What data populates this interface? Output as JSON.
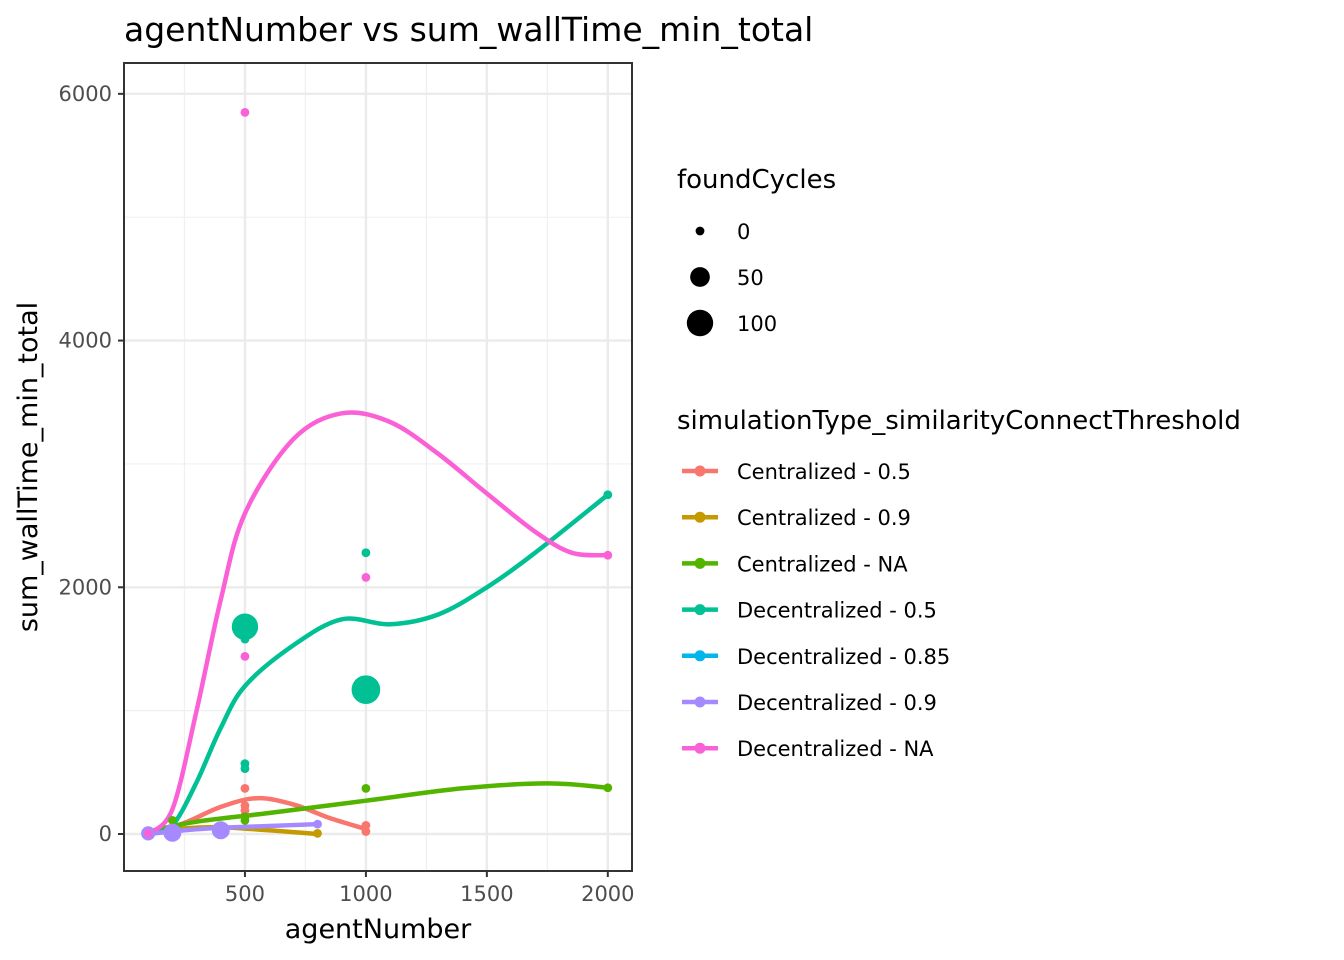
{
  "chart_data": {
    "type": "scatter",
    "title": "agentNumber  vs  sum_wallTime_min_total",
    "xlabel": "agentNumber",
    "ylabel": "sum_wallTime_min_total",
    "xlim": [
      0,
      2100
    ],
    "ylim": [
      -300,
      6250
    ],
    "x_ticks": [
      500,
      1000,
      1500,
      2000
    ],
    "y_ticks": [
      0,
      2000,
      4000,
      6000
    ],
    "grid": true,
    "legend_position": "right",
    "size_legend": {
      "title": "foundCycles",
      "entries": [
        {
          "label": "0",
          "value": 0
        },
        {
          "label": "50",
          "value": 50
        },
        {
          "label": "100",
          "value": 100
        }
      ]
    },
    "color_legend": {
      "title": "simulationType_similarityConnectThreshold"
    },
    "series": [
      {
        "name": "Centralized - 0.5",
        "color": "#F8766D",
        "points": [
          {
            "x": 100,
            "y": 0,
            "cycles": 0
          },
          {
            "x": 200,
            "y": 50,
            "cycles": 0
          },
          {
            "x": 500,
            "y": 370,
            "cycles": 0
          },
          {
            "x": 500,
            "y": 230,
            "cycles": 0
          },
          {
            "x": 500,
            "y": 190,
            "cycles": 0
          },
          {
            "x": 500,
            "y": 150,
            "cycles": 0
          },
          {
            "x": 1000,
            "y": 70,
            "cycles": 0
          },
          {
            "x": 1000,
            "y": 20,
            "cycles": 0
          }
        ],
        "trend": [
          {
            "x": 100,
            "y": 0
          },
          {
            "x": 250,
            "y": 90
          },
          {
            "x": 400,
            "y": 220
          },
          {
            "x": 550,
            "y": 290
          },
          {
            "x": 700,
            "y": 240
          },
          {
            "x": 850,
            "y": 130
          },
          {
            "x": 1000,
            "y": 40
          }
        ]
      },
      {
        "name": "Centralized - 0.9",
        "color": "#C49A00",
        "points": [
          {
            "x": 100,
            "y": 0,
            "cycles": 0
          },
          {
            "x": 200,
            "y": 20,
            "cycles": 0
          },
          {
            "x": 400,
            "y": 30,
            "cycles": 0
          },
          {
            "x": 800,
            "y": 5,
            "cycles": 0
          }
        ],
        "trend": [
          {
            "x": 100,
            "y": 0
          },
          {
            "x": 250,
            "y": 45
          },
          {
            "x": 400,
            "y": 55
          },
          {
            "x": 600,
            "y": 30
          },
          {
            "x": 800,
            "y": 0
          }
        ]
      },
      {
        "name": "Centralized - NA",
        "color": "#53B400",
        "points": [
          {
            "x": 100,
            "y": 5,
            "cycles": 0
          },
          {
            "x": 200,
            "y": 110,
            "cycles": 0
          },
          {
            "x": 500,
            "y": 140,
            "cycles": 0
          },
          {
            "x": 500,
            "y": 110,
            "cycles": 0
          },
          {
            "x": 1000,
            "y": 370,
            "cycles": 0
          },
          {
            "x": 2000,
            "y": 375,
            "cycles": 0
          }
        ],
        "trend": [
          {
            "x": 100,
            "y": 20
          },
          {
            "x": 300,
            "y": 100
          },
          {
            "x": 600,
            "y": 170
          },
          {
            "x": 1000,
            "y": 270
          },
          {
            "x": 1400,
            "y": 370
          },
          {
            "x": 1750,
            "y": 410
          },
          {
            "x": 2000,
            "y": 375
          }
        ]
      },
      {
        "name": "Decentralized - 0.5",
        "color": "#00C094",
        "points": [
          {
            "x": 100,
            "y": 10,
            "cycles": 0
          },
          {
            "x": 200,
            "y": 20,
            "cycles": 0
          },
          {
            "x": 500,
            "y": 1680,
            "cycles": 100
          },
          {
            "x": 500,
            "y": 1580,
            "cycles": 0
          },
          {
            "x": 500,
            "y": 570,
            "cycles": 0
          },
          {
            "x": 500,
            "y": 530,
            "cycles": 0
          },
          {
            "x": 1000,
            "y": 2280,
            "cycles": 0
          },
          {
            "x": 1000,
            "y": 1170,
            "cycles": 120
          },
          {
            "x": 2000,
            "y": 2750,
            "cycles": 0
          }
        ],
        "trend": [
          {
            "x": 100,
            "y": 0
          },
          {
            "x": 200,
            "y": 70
          },
          {
            "x": 300,
            "y": 420
          },
          {
            "x": 400,
            "y": 860
          },
          {
            "x": 500,
            "y": 1200
          },
          {
            "x": 700,
            "y": 1530
          },
          {
            "x": 900,
            "y": 1740
          },
          {
            "x": 1100,
            "y": 1700
          },
          {
            "x": 1300,
            "y": 1780
          },
          {
            "x": 1500,
            "y": 2000
          },
          {
            "x": 1700,
            "y": 2280
          },
          {
            "x": 2000,
            "y": 2750
          }
        ]
      },
      {
        "name": "Decentralized - 0.85",
        "color": "#00B6EB",
        "points": [],
        "trend": []
      },
      {
        "name": "Decentralized - 0.9",
        "color": "#A58AFF",
        "points": [
          {
            "x": 100,
            "y": 5,
            "cycles": 20
          },
          {
            "x": 200,
            "y": 10,
            "cycles": 40
          },
          {
            "x": 400,
            "y": 30,
            "cycles": 40
          },
          {
            "x": 800,
            "y": 80,
            "cycles": 0
          }
        ],
        "trend": [
          {
            "x": 100,
            "y": 0
          },
          {
            "x": 250,
            "y": 30
          },
          {
            "x": 400,
            "y": 50
          },
          {
            "x": 600,
            "y": 65
          },
          {
            "x": 800,
            "y": 80
          }
        ]
      },
      {
        "name": "Decentralized - NA",
        "color": "#FB61D7",
        "points": [
          {
            "x": 100,
            "y": 5,
            "cycles": 0
          },
          {
            "x": 500,
            "y": 5850,
            "cycles": 0
          },
          {
            "x": 500,
            "y": 1440,
            "cycles": 0
          },
          {
            "x": 1000,
            "y": 2080,
            "cycles": 0
          },
          {
            "x": 2000,
            "y": 2260,
            "cycles": 0
          }
        ],
        "trend": [
          {
            "x": 100,
            "y": 0
          },
          {
            "x": 200,
            "y": 200
          },
          {
            "x": 300,
            "y": 1000
          },
          {
            "x": 400,
            "y": 1900
          },
          {
            "x": 500,
            "y": 2600
          },
          {
            "x": 700,
            "y": 3200
          },
          {
            "x": 900,
            "y": 3410
          },
          {
            "x": 1100,
            "y": 3340
          },
          {
            "x": 1300,
            "y": 3080
          },
          {
            "x": 1500,
            "y": 2760
          },
          {
            "x": 1700,
            "y": 2450
          },
          {
            "x": 1850,
            "y": 2280
          },
          {
            "x": 2000,
            "y": 2260
          }
        ]
      }
    ]
  }
}
